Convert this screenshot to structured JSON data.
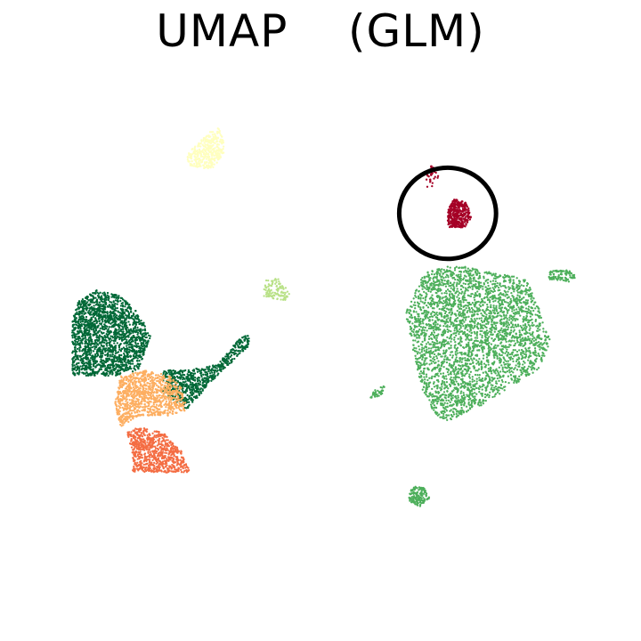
{
  "chart_data": {
    "type": "scatter",
    "title": "UMAP    (GLM)",
    "xlabel": "",
    "ylabel": "",
    "axes_visible": false,
    "grid": false,
    "legend": "none",
    "xlim": [
      0,
      100
    ],
    "ylim": [
      0,
      100
    ],
    "highlight": {
      "shape": "circle",
      "cx": 71,
      "cy": 73.5,
      "r": 8,
      "color": "#000000"
    },
    "clusters": [
      {
        "id": "yellow-top",
        "color": "#ffffbf",
        "points": 380,
        "region": [
          [
            28,
            82
          ],
          [
            32,
            81
          ],
          [
            34,
            84
          ],
          [
            34,
            86.5
          ],
          [
            33,
            89
          ],
          [
            30,
            86
          ],
          [
            28,
            84
          ]
        ]
      },
      {
        "id": "lime-small",
        "color": "#b8e186",
        "points": 110,
        "region": [
          [
            40.5,
            59
          ],
          [
            44,
            58
          ],
          [
            45,
            59.5
          ],
          [
            43,
            62
          ],
          [
            41,
            62
          ]
        ]
      },
      {
        "id": "darkgreen-left",
        "color": "#006837",
        "points": 1900,
        "region": [
          [
            9,
            45
          ],
          [
            9,
            55
          ],
          [
            10,
            58
          ],
          [
            13,
            60
          ],
          [
            17,
            59
          ],
          [
            20,
            56
          ],
          [
            22,
            52
          ],
          [
            21,
            49
          ],
          [
            20,
            46
          ],
          [
            16,
            45
          ]
        ]
      },
      {
        "id": "darkgreen-arm",
        "color": "#006837",
        "points": 700,
        "region": [
          [
            24,
            42
          ],
          [
            28,
            39
          ],
          [
            32,
            44
          ],
          [
            38,
            50
          ],
          [
            38.5,
            52
          ],
          [
            37,
            52
          ],
          [
            33,
            47
          ],
          [
            28,
            46
          ],
          [
            24,
            46
          ]
        ]
      },
      {
        "id": "orange-mid",
        "color": "#fdae61",
        "points": 1000,
        "region": [
          [
            17,
            36
          ],
          [
            20,
            38
          ],
          [
            25,
            38
          ],
          [
            28,
            39
          ],
          [
            27,
            43
          ],
          [
            25,
            45
          ],
          [
            21,
            46
          ],
          [
            17,
            45
          ],
          [
            16,
            40
          ]
        ]
      },
      {
        "id": "red-orange-bottom",
        "color": "#f46d43",
        "points": 750,
        "region": [
          [
            19,
            28
          ],
          [
            28.5,
            28
          ],
          [
            27,
            32
          ],
          [
            24,
            35
          ],
          [
            20,
            36
          ],
          [
            18,
            35
          ],
          [
            19,
            31
          ]
        ]
      },
      {
        "id": "green-big",
        "color": "#4daf5b",
        "points": 3200,
        "region": [
          [
            66,
            46
          ],
          [
            64,
            56
          ],
          [
            67,
            63
          ],
          [
            72,
            64.5
          ],
          [
            79,
            63
          ],
          [
            84,
            62
          ],
          [
            86,
            57
          ],
          [
            88,
            51
          ],
          [
            86,
            46
          ],
          [
            82,
            43.5
          ],
          [
            77,
            40
          ],
          [
            71,
            37
          ],
          [
            69,
            38
          ],
          [
            67,
            42
          ]
        ]
      },
      {
        "id": "green-right-blob",
        "color": "#4daf5b",
        "points": 90,
        "region": [
          [
            87,
            62
          ],
          [
            91,
            61.5
          ],
          [
            92.5,
            62.5
          ],
          [
            91,
            63.5
          ],
          [
            88,
            63.5
          ]
        ]
      },
      {
        "id": "green-bottom-blob",
        "color": "#4daf5b",
        "points": 140,
        "region": [
          [
            64.5,
            23
          ],
          [
            66.5,
            22
          ],
          [
            68,
            23.5
          ],
          [
            67,
            25.5
          ],
          [
            65,
            25.5
          ]
        ]
      },
      {
        "id": "green-left-bit",
        "color": "#4daf5b",
        "points": 35,
        "region": [
          [
            58,
            41
          ],
          [
            60,
            41.5
          ],
          [
            61,
            43.5
          ],
          [
            59,
            42.5
          ]
        ]
      },
      {
        "id": "crimson-main",
        "color": "#a50026",
        "points": 360,
        "region": [
          [
            71,
            71
          ],
          [
            74,
            71
          ],
          [
            75,
            73
          ],
          [
            74,
            75.5
          ],
          [
            72,
            76
          ],
          [
            71,
            74
          ]
        ]
      },
      {
        "id": "crimson-tail",
        "color": "#a50026",
        "points": 40,
        "region": [
          [
            67.5,
            78
          ],
          [
            68.5,
            78
          ],
          [
            69.5,
            80
          ],
          [
            68.5,
            82
          ],
          [
            67.5,
            81
          ]
        ]
      }
    ]
  }
}
